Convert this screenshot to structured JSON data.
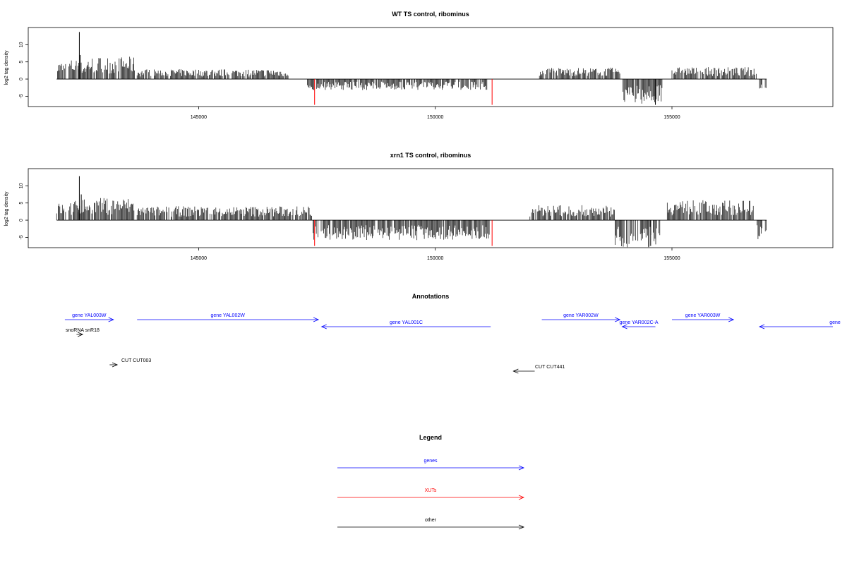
{
  "chart_data": [
    {
      "type": "bar",
      "title": "WT TS control, ribominus",
      "ylabel": "log2 tag density",
      "xlabel": "",
      "xlim": [
        141400,
        158400
      ],
      "ylim": [
        -8,
        15
      ],
      "xticks": [
        145000,
        150000,
        155000
      ],
      "yticks": [
        10,
        5,
        0,
        -5
      ],
      "x_tick_labels": [
        "145000",
        "150000",
        "155000"
      ],
      "y_tick_labels": [
        "10",
        "5",
        "0",
        "-5"
      ],
      "grid": false,
      "segments": [
        {
          "start": 142000,
          "end": 142200,
          "sign": 1,
          "level": 3.5
        },
        {
          "start": 142260,
          "end": 142450,
          "sign": 1,
          "level": 4
        },
        {
          "start": 142450,
          "end": 142650,
          "sign": 1,
          "level": 3.5
        },
        {
          "start": 142650,
          "end": 143200,
          "sign": 1,
          "level": 4.5
        },
        {
          "start": 143200,
          "end": 143650,
          "sign": 1,
          "level": 4.5
        },
        {
          "start": 143700,
          "end": 146900,
          "sign": 1,
          "level": 2
        },
        {
          "start": 147300,
          "end": 151100,
          "sign": -1,
          "level": 2.2
        },
        {
          "start": 152200,
          "end": 153900,
          "sign": 1,
          "level": 2.3
        },
        {
          "start": 153950,
          "end": 154800,
          "sign": -1,
          "level": 5
        },
        {
          "start": 155000,
          "end": 156800,
          "sign": 1,
          "level": 2.4
        },
        {
          "start": 156850,
          "end": 157000,
          "sign": -1,
          "level": 2.5
        }
      ],
      "spikes": [
        {
          "x": 142480,
          "value": 13.7
        },
        {
          "x": 142500,
          "value": 7
        },
        {
          "x": 154650,
          "value": -7.5
        }
      ],
      "red_markers": [
        {
          "x": 147450,
          "value": -7.5
        },
        {
          "x": 151200,
          "value": -7.5
        }
      ]
    },
    {
      "type": "bar",
      "title": "xrn1 TS control, ribominus",
      "ylabel": "log2 tag density",
      "xlabel": "",
      "xlim": [
        141400,
        158400
      ],
      "ylim": [
        -8,
        15
      ],
      "xticks": [
        145000,
        150000,
        155000
      ],
      "yticks": [
        10,
        5,
        0,
        -5
      ],
      "x_tick_labels": [
        "145000",
        "150000",
        "155000"
      ],
      "y_tick_labels": [
        "10",
        "5",
        "0",
        "-5"
      ],
      "grid": false,
      "segments": [
        {
          "start": 142000,
          "end": 142200,
          "sign": 1,
          "level": 3.5
        },
        {
          "start": 142260,
          "end": 142450,
          "sign": 1,
          "level": 4
        },
        {
          "start": 142450,
          "end": 143650,
          "sign": 1,
          "level": 4.5
        },
        {
          "start": 143700,
          "end": 147400,
          "sign": 1,
          "level": 2.8
        },
        {
          "start": 147400,
          "end": 151150,
          "sign": -1,
          "level": 4
        },
        {
          "start": 152000,
          "end": 153800,
          "sign": 1,
          "level": 3
        },
        {
          "start": 153800,
          "end": 154750,
          "sign": -1,
          "level": 5.5
        },
        {
          "start": 154900,
          "end": 156750,
          "sign": 1,
          "level": 4
        },
        {
          "start": 156800,
          "end": 157000,
          "sign": -1,
          "level": 4
        }
      ],
      "spikes": [
        {
          "x": 142480,
          "value": 12.8
        },
        {
          "x": 142520,
          "value": 7.5
        },
        {
          "x": 154550,
          "value": -7.5
        }
      ],
      "red_markers": [
        {
          "x": 147450,
          "value": -7.5
        },
        {
          "x": 151200,
          "value": -7.5
        }
      ]
    }
  ],
  "annotations": {
    "title": "Annotations",
    "features": [
      {
        "label": "gene YAL003W",
        "start": 142174,
        "end": 143200,
        "strand": "+",
        "color": "#0000ff",
        "row": 0
      },
      {
        "label": "gene YAL002W",
        "start": 143700,
        "end": 147530,
        "strand": "+",
        "color": "#0000ff",
        "row": 0
      },
      {
        "label": "gene YAL001C",
        "start": 147600,
        "end": 151170,
        "strand": "-",
        "color": "#0000ff",
        "row": 1
      },
      {
        "label": "gene YAR002W",
        "start": 152250,
        "end": 153900,
        "strand": "+",
        "color": "#0000ff",
        "row": 0
      },
      {
        "label": "gene YAR002C-A",
        "start": 153950,
        "end": 154650,
        "strand": "-",
        "color": "#0000ff",
        "row": 1
      },
      {
        "label": "gene YAR003W",
        "start": 155000,
        "end": 156300,
        "strand": "+",
        "color": "#0000ff",
        "row": 0
      },
      {
        "label": "gene",
        "start": 156850,
        "end": 158400,
        "strand": "-",
        "color": "#0000ff",
        "row": 1
      },
      {
        "label": "snoRNA snR18",
        "start": 142420,
        "end": 142550,
        "strand": "+",
        "color": "#000000",
        "row": 2
      },
      {
        "label": "CUT CUT003",
        "start": 143120,
        "end": 143280,
        "strand": "+",
        "color": "#000000",
        "row": 3
      },
      {
        "label": "CUT CUT441",
        "start": 151650,
        "end": 152100,
        "strand": "-",
        "color": "#000000",
        "row": 4
      }
    ]
  },
  "legend": {
    "title": "Legend",
    "items": [
      {
        "label": "genes",
        "color": "#0000ff"
      },
      {
        "label": "XUTs",
        "color": "#ff0000"
      },
      {
        "label": "other",
        "color": "#000000"
      }
    ]
  }
}
